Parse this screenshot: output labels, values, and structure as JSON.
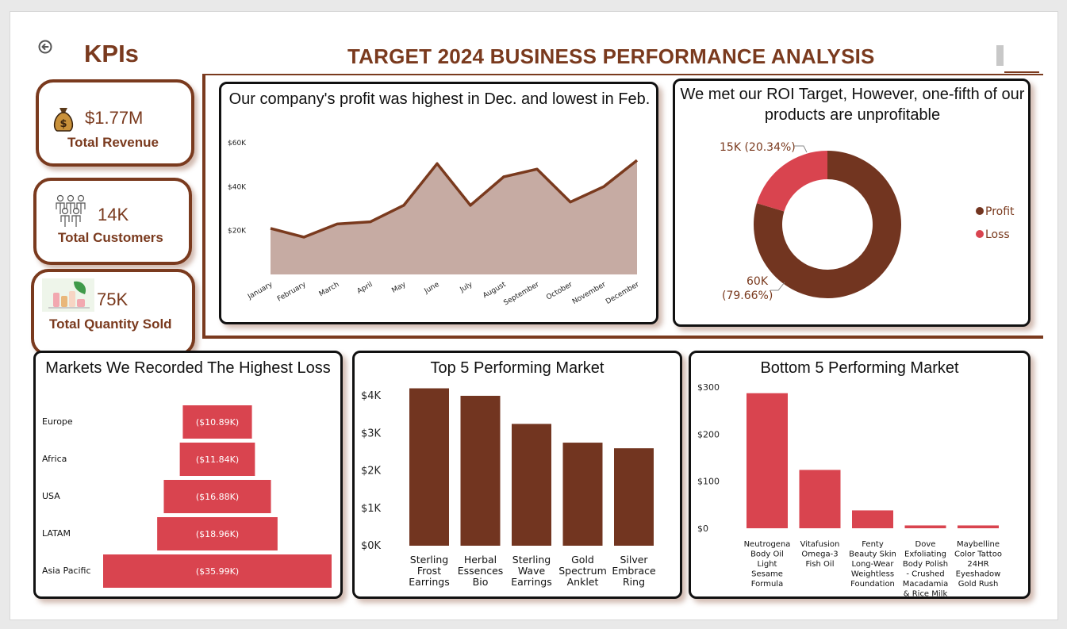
{
  "header": {
    "kpis_title": "KPIs",
    "main_title": "TARGET 2024 BUSINESS PERFORMANCE ANALYSIS"
  },
  "kpis": [
    {
      "value": "$1.77M",
      "label": "Total Revenue",
      "icon": "money-bag-icon"
    },
    {
      "value": "14K",
      "label": "Total Customers",
      "icon": "people-icon"
    },
    {
      "value": "75K",
      "label": "Total Quantity Sold",
      "icon": "products-icon"
    }
  ],
  "colors": {
    "brown": "#7a3a1e",
    "area_fill": "#c6aba3",
    "red": "#d9444f",
    "dark_brown": "#723520"
  },
  "panels": {
    "profit": {
      "title": "Our company's profit was highest in Dec. and lowest in Feb."
    },
    "roi": {
      "title": "We met our ROI Target, However, one-fifth of our products are unprofitable"
    },
    "loss": {
      "title": "Markets We Recorded The Highest Loss"
    },
    "top5": {
      "title": "Top 5 Performing Market"
    },
    "bottom5": {
      "title": "Bottom 5 Performing Market"
    }
  },
  "chart_data": [
    {
      "type": "area",
      "title": "Our company's profit was highest in Dec. and lowest in Feb.",
      "categories": [
        "January",
        "February",
        "March",
        "April",
        "May",
        "June",
        "July",
        "August",
        "September",
        "October",
        "November",
        "December"
      ],
      "values": [
        21000,
        17000,
        23000,
        24000,
        31500,
        50500,
        31500,
        44500,
        48000,
        33000,
        40000,
        52000
      ],
      "yticks": [
        "$60K",
        "$40K",
        "$20K"
      ],
      "ylim": [
        0,
        60000
      ],
      "grid": false
    },
    {
      "type": "pie",
      "title": "We met our ROI Target, However, one-fifth of our products are unprofitable",
      "slices": [
        {
          "name": "Profit",
          "value": 79.66,
          "label_line1": "60K",
          "label_line2": "(79.66%)",
          "color": "#723520"
        },
        {
          "name": "Loss",
          "value": 20.34,
          "label_line1": "15K (20.34%)",
          "label_line2": "",
          "color": "#d9444f"
        }
      ],
      "legend": [
        "Profit",
        "Loss"
      ],
      "legend_position": "right"
    },
    {
      "type": "bar",
      "orientation": "horizontal",
      "title": "Markets We Recorded The Highest Loss",
      "categories": [
        "Europe",
        "Africa",
        "USA",
        "LATAM",
        "Asia Pacific"
      ],
      "values": [
        10.89,
        11.84,
        16.88,
        18.96,
        35.99
      ],
      "labels": [
        "($10.89K)",
        "($11.84K)",
        "($16.88K)",
        "($18.96K)",
        "($35.99K)"
      ]
    },
    {
      "type": "bar",
      "title": "Top 5 Performing Market",
      "categories": [
        [
          "Sterling",
          "Frost",
          "Earrings"
        ],
        [
          "Herbal",
          "Essences",
          "Bio"
        ],
        [
          "Sterling",
          "Wave",
          "Earrings"
        ],
        [
          "Gold",
          "Spectrum",
          "Anklet"
        ],
        [
          "Silver",
          "Embrace",
          "Ring"
        ]
      ],
      "values": [
        4200,
        4000,
        3250,
        2750,
        2600
      ],
      "yticks": [
        "$4K",
        "$3K",
        "$2K",
        "$1K",
        "$0K"
      ],
      "ylim": [
        0,
        4000
      ]
    },
    {
      "type": "bar",
      "title": "Bottom 5 Performing Market",
      "categories": [
        [
          "Neutrogena",
          "Body Oil",
          "Light",
          "Sesame",
          "Formula"
        ],
        [
          "Vitafusion",
          "Omega-3",
          "Fish Oil"
        ],
        [
          "Fenty",
          "Beauty Skin",
          "Long-Wear",
          "Weightless",
          "Foundation"
        ],
        [
          "Dove",
          "Exfoliating",
          "Body Polish",
          "- Crushed",
          "Macadamia",
          "& Rice Milk"
        ],
        [
          "Maybelline",
          "Color Tattoo",
          "24HR",
          "Eyeshadow",
          "Gold Rush"
        ]
      ],
      "values": [
        287,
        124,
        38,
        6,
        6
      ],
      "yticks": [
        "$300",
        "$200",
        "$100",
        "$0"
      ],
      "ylim": [
        0,
        300
      ]
    }
  ]
}
